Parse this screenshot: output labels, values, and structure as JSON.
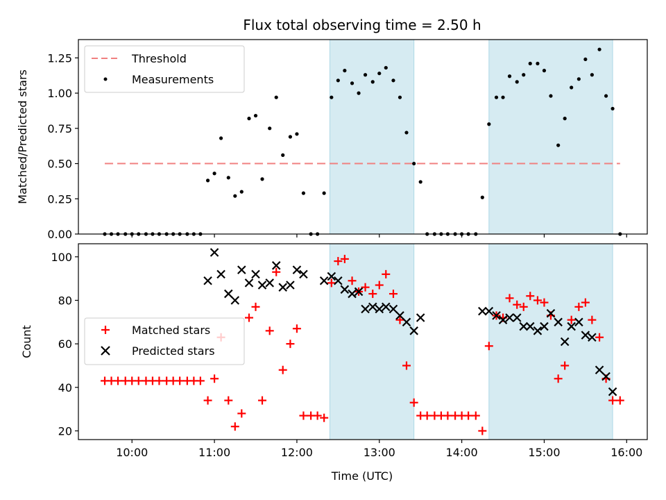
{
  "chart_data": [
    {
      "type": "scatter",
      "title": "Flux total observing time = 2.50 h",
      "xlabel": "",
      "ylabel": "Matched/Predicted stars",
      "xlim": [
        9.35,
        16.25
      ],
      "ylim": [
        0,
        1.38
      ],
      "yticks": [
        0,
        0.25,
        0.5,
        0.75,
        1.0,
        1.25
      ],
      "yticklabels": [
        "0.00",
        "0.25",
        "0.50",
        "0.75",
        "1.00",
        "1.25"
      ],
      "grid": false,
      "legend_position": "top-left",
      "shaded_intervals": [
        [
          12.4,
          13.42
        ],
        [
          14.33,
          15.83
        ]
      ],
      "shade_color": "#add8e6",
      "threshold": {
        "name": "Threshold",
        "value": 0.5,
        "x_range": [
          9.67,
          15.92
        ],
        "color": "#f08080"
      },
      "series": [
        {
          "name": "Measurements",
          "color": "#000000",
          "x": [
            9.67,
            9.75,
            9.83,
            9.92,
            10.0,
            10.08,
            10.17,
            10.25,
            10.33,
            10.42,
            10.5,
            10.58,
            10.67,
            10.75,
            10.83,
            10.92,
            11.0,
            11.08,
            11.17,
            11.25,
            11.33,
            11.42,
            11.5,
            11.58,
            11.67,
            11.75,
            11.83,
            11.92,
            12.0,
            12.08,
            12.17,
            12.25,
            12.33,
            12.42,
            12.5,
            12.58,
            12.67,
            12.75,
            12.83,
            12.92,
            13.0,
            13.08,
            13.17,
            13.25,
            13.33,
            13.42,
            13.5,
            13.58,
            13.67,
            13.75,
            13.83,
            13.92,
            14.0,
            14.08,
            14.17,
            14.25,
            14.33,
            14.42,
            14.5,
            14.58,
            14.67,
            14.75,
            14.83,
            14.92,
            15.0,
            15.08,
            15.17,
            15.25,
            15.33,
            15.42,
            15.5,
            15.58,
            15.67,
            15.75,
            15.83,
            15.92
          ],
          "y": [
            0,
            0,
            0,
            0,
            0,
            0,
            0,
            0,
            0,
            0,
            0,
            0,
            0,
            0,
            0,
            0.38,
            0.43,
            0.68,
            0.4,
            0.27,
            0.3,
            0.82,
            0.84,
            0.39,
            0.75,
            0.97,
            0.56,
            0.69,
            0.71,
            0.29,
            0,
            0,
            0.29,
            0.97,
            1.09,
            1.16,
            1.07,
            1.0,
            1.13,
            1.08,
            1.14,
            1.18,
            1.09,
            0.97,
            0.72,
            0.5,
            0.37,
            0,
            0,
            0,
            0,
            0,
            0,
            0,
            0,
            0.26,
            0.78,
            0.97,
            0.97,
            1.12,
            1.08,
            1.13,
            1.21,
            1.21,
            1.16,
            0.98,
            0.63,
            0.82,
            1.04,
            1.1,
            1.24,
            1.13,
            1.31,
            0.98,
            0.89,
            0
          ]
        }
      ]
    },
    {
      "type": "scatter",
      "title": "",
      "xlabel": "Time (UTC)",
      "ylabel": "Count",
      "xlim": [
        9.35,
        16.25
      ],
      "ylim": [
        16,
        106
      ],
      "yticks": [
        20,
        40,
        60,
        80,
        100
      ],
      "yticklabels": [
        "20",
        "40",
        "60",
        "80",
        "100"
      ],
      "xticks": [
        10,
        11,
        12,
        13,
        14,
        15,
        16
      ],
      "xticklabels": [
        "10:00",
        "11:00",
        "12:00",
        "13:00",
        "14:00",
        "15:00",
        "16:00"
      ],
      "grid": false,
      "legend_position": "center-left",
      "shaded_intervals": [
        [
          12.4,
          13.42
        ],
        [
          14.33,
          15.83
        ]
      ],
      "shade_color": "#add8e6",
      "series": [
        {
          "name": "Matched stars",
          "marker": "plus",
          "color": "#ff0000",
          "x": [
            9.67,
            9.75,
            9.83,
            9.92,
            10.0,
            10.08,
            10.17,
            10.25,
            10.33,
            10.42,
            10.5,
            10.58,
            10.67,
            10.75,
            10.83,
            10.92,
            11.0,
            11.08,
            11.17,
            11.25,
            11.33,
            11.42,
            11.5,
            11.58,
            11.67,
            11.75,
            11.83,
            11.92,
            12.0,
            12.08,
            12.17,
            12.25,
            12.33,
            12.42,
            12.5,
            12.58,
            12.67,
            12.75,
            12.83,
            12.92,
            13.0,
            13.08,
            13.17,
            13.25,
            13.33,
            13.42,
            13.5,
            13.58,
            13.67,
            13.75,
            13.83,
            13.92,
            14.0,
            14.08,
            14.17,
            14.25,
            14.33,
            14.42,
            14.5,
            14.58,
            14.67,
            14.75,
            14.83,
            14.92,
            15.0,
            15.08,
            15.17,
            15.25,
            15.33,
            15.42,
            15.5,
            15.58,
            15.67,
            15.75,
            15.83,
            15.92
          ],
          "y": [
            43,
            43,
            43,
            43,
            43,
            43,
            43,
            43,
            43,
            43,
            43,
            43,
            43,
            43,
            43,
            34,
            44,
            63,
            34,
            22,
            28,
            72,
            77,
            34,
            66,
            93,
            48,
            60,
            67,
            27,
            27,
            27,
            26,
            88,
            98,
            99,
            89,
            84,
            86,
            83,
            87,
            92,
            83,
            71,
            50,
            33,
            27,
            27,
            27,
            27,
            27,
            27,
            27,
            27,
            27,
            20,
            59,
            73,
            72,
            81,
            78,
            77,
            82,
            80,
            79,
            73,
            44,
            50,
            71,
            77,
            79,
            71,
            63,
            44,
            34,
            34
          ]
        },
        {
          "name": "Predicted stars",
          "marker": "x",
          "color": "#000000",
          "x": [
            10.92,
            11.0,
            11.08,
            11.17,
            11.25,
            11.33,
            11.42,
            11.5,
            11.58,
            11.67,
            11.75,
            11.83,
            11.92,
            12.0,
            12.08,
            12.33,
            12.42,
            12.5,
            12.58,
            12.67,
            12.75,
            12.83,
            12.92,
            13.0,
            13.08,
            13.17,
            13.25,
            13.33,
            13.42,
            13.5,
            14.25,
            14.33,
            14.42,
            14.5,
            14.58,
            14.67,
            14.75,
            14.83,
            14.92,
            15.0,
            15.08,
            15.17,
            15.25,
            15.33,
            15.42,
            15.5,
            15.58,
            15.67,
            15.75,
            15.83
          ],
          "y": [
            89,
            102,
            92,
            83,
            80,
            94,
            88,
            92,
            87,
            88,
            96,
            86,
            87,
            94,
            92,
            89,
            91,
            89,
            85,
            83,
            84,
            76,
            77,
            76,
            77,
            76,
            73,
            70,
            66,
            72,
            75,
            75,
            73,
            71,
            72,
            72,
            68,
            68,
            66,
            68,
            74,
            70,
            61,
            68,
            70,
            64,
            63,
            48,
            45,
            38
          ]
        }
      ]
    }
  ]
}
